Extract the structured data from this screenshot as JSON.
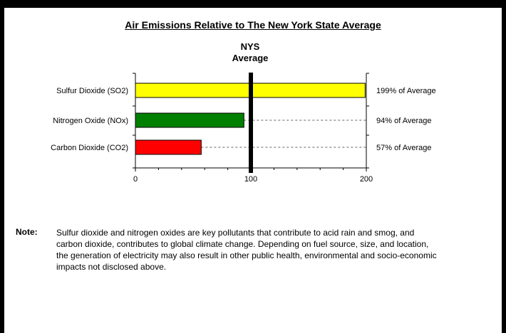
{
  "chart_data": {
    "type": "bar",
    "orientation": "horizontal",
    "title": "Air Emissions Relative to The New York State Average",
    "reference_line": {
      "value": 100,
      "label_line1": "NYS",
      "label_line2": "Average"
    },
    "categories": [
      "Sulfur Dioxide (SO2)",
      "Nitrogen Oxide (NOx)",
      "Carbon Dioxide (CO2)"
    ],
    "values": [
      199,
      94,
      57
    ],
    "value_labels": [
      "199% of Average",
      "94% of Average",
      "57% of Average"
    ],
    "bar_colors": [
      "#ffff00",
      "#008000",
      "#ff0000"
    ],
    "xlim": [
      0,
      200
    ],
    "xticks": [
      "0",
      "100",
      "200"
    ],
    "xlabel": "",
    "ylabel": "",
    "grid": "dashed guide lines from bar end to value label"
  },
  "note": {
    "label": "Note:",
    "text": "Sulfur dioxide and nitrogen oxides are key pollutants that contribute to acid rain and smog, and carbon dioxide, contributes to global climate change.  Depending on fuel source, size, and location, the generation of electricity may also result in other public health, environmental and socio-economic impacts not disclosed above."
  }
}
